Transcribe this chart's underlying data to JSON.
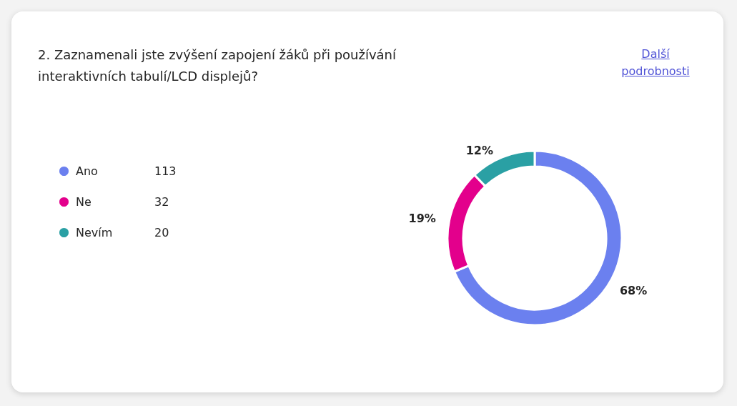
{
  "chart_data": {
    "type": "donut",
    "title": "2. Zaznamenali jste zvýšení zapojení žáků při používání interaktivních tabulí/LCD displejů?",
    "annotations": [
      "Další podrobnosti",
      {
        "text": "113",
        "x": "Ano"
      },
      {
        "text": "32",
        "x": "Ne"
      },
      {
        "text": "20",
        "x": "Nevím"
      }
    ],
    "categories": [
      "Ano",
      "Ne",
      "Nevím"
    ],
    "values": [
      68,
      19,
      12
    ],
    "colors": [
      "#6b80ef",
      "#e3008c",
      "#2aa0a4"
    ],
    "value_labels": [
      "68%",
      "19%",
      "12%"
    ],
    "legend": "left"
  }
}
